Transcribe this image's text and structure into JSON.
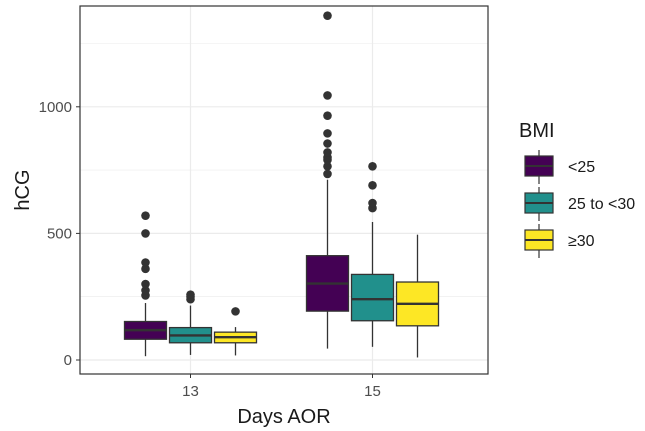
{
  "chart_data": {
    "type": "boxplot",
    "title": "",
    "xlabel": "Days AOR",
    "ylabel": "hCG",
    "ylim": [
      -50,
      1400
    ],
    "yticks": [
      0,
      500,
      1000
    ],
    "categories": [
      "13",
      "15"
    ],
    "legend": {
      "title": "BMI",
      "position": "right",
      "entries": [
        "<25",
        "25 to <30",
        "≥30"
      ]
    },
    "colors": {
      "<25": "#440154",
      "25 to <30": "#21908C",
      "≥30": "#FDE725",
      "outline": "#333333",
      "panel_border": "#333333",
      "grid": "#ebebeb"
    },
    "series": [
      {
        "name": "<25",
        "boxes": [
          {
            "x": "13",
            "min": 15,
            "q1": 82,
            "median": 118,
            "q3": 152,
            "max": 225,
            "outliers": [
              255,
              275,
              300,
              360,
              385,
              500,
              570
            ]
          },
          {
            "x": "15",
            "min": 45,
            "q1": 193,
            "median": 302,
            "q3": 412,
            "max": 712,
            "outliers": [
              735,
              765,
              790,
              800,
              820,
              855,
              895,
              965,
              1045,
              1360
            ]
          }
        ]
      },
      {
        "name": "25 to <30",
        "boxes": [
          {
            "x": "13",
            "min": 20,
            "q1": 68,
            "median": 97,
            "q3": 128,
            "max": 215,
            "outliers": [
              240,
              250,
              258
            ]
          },
          {
            "x": "15",
            "min": 52,
            "q1": 155,
            "median": 240,
            "q3": 338,
            "max": 545,
            "outliers": [
              600,
              620,
              690,
              765
            ]
          }
        ]
      },
      {
        "name": "≥30",
        "boxes": [
          {
            "x": "13",
            "min": 18,
            "q1": 68,
            "median": 90,
            "q3": 110,
            "max": 130,
            "outliers": [
              192
            ]
          },
          {
            "x": "15",
            "min": 10,
            "q1": 135,
            "median": 222,
            "q3": 308,
            "max": 495,
            "outliers": []
          }
        ]
      }
    ]
  }
}
